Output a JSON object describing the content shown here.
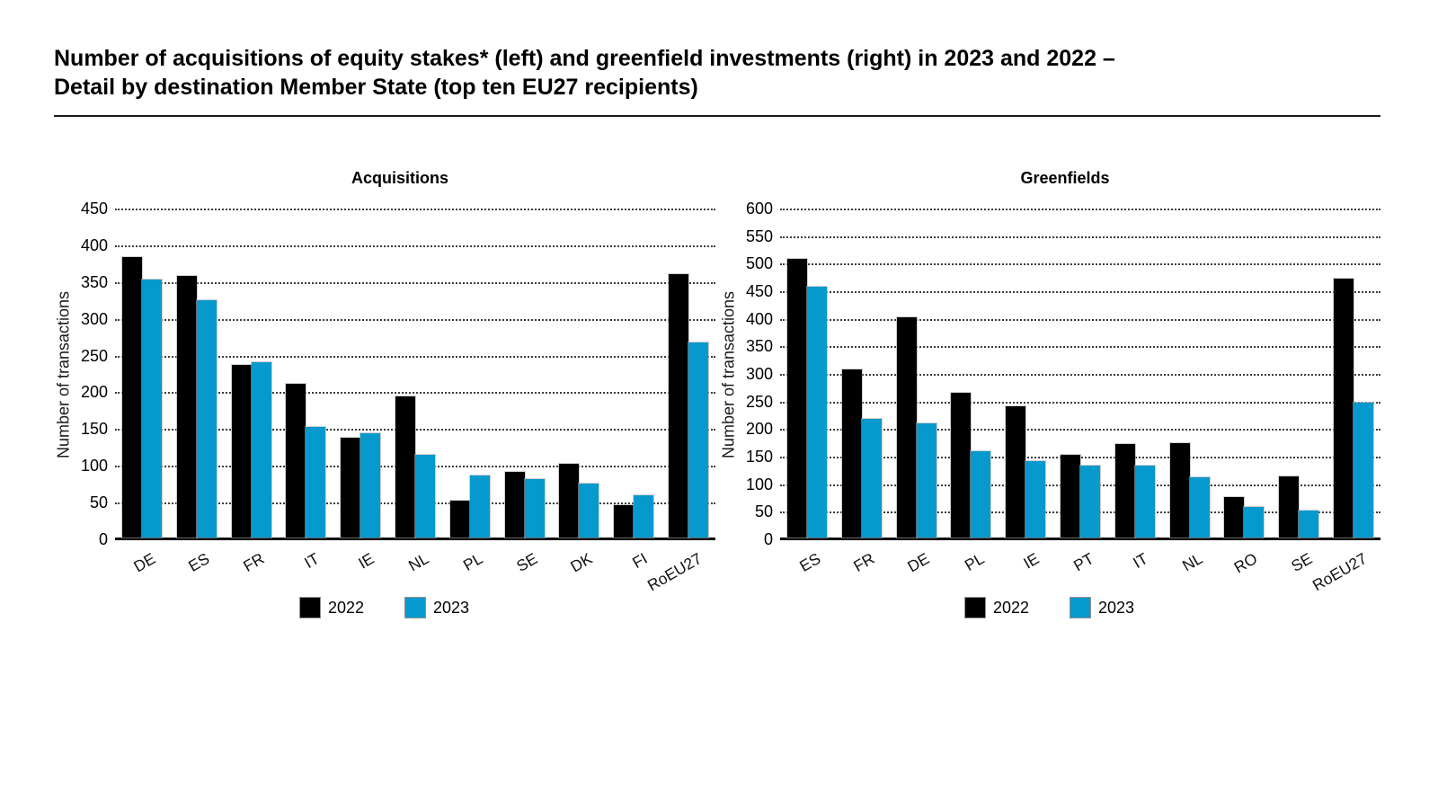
{
  "page": {
    "title_lines": [
      "Number of acquisitions of equity stakes* (left) and greenfield investments (right) in 2023 and 2022 –",
      "Detail by destination Member State (top ten EU27 recipients)"
    ]
  },
  "colors": {
    "bar_2022": "#000000",
    "bar_2023": "#0699CE",
    "gridline": "#3c3c3c"
  },
  "chart_data": [
    {
      "type": "bar",
      "title": "Acquisitions",
      "xlabel": "",
      "ylabel": "Number of transactions",
      "ylim": [
        0,
        450
      ],
      "ytick_step": 50,
      "grid": "horizontal-dotted",
      "legend_position": "bottom-center",
      "categories": [
        "DE",
        "ES",
        "FR",
        "IT",
        "IE",
        "NL",
        "PL",
        "SE",
        "DK",
        "FI",
        "RoEU27"
      ],
      "series": [
        {
          "name": "2022",
          "color": "#000000",
          "values": [
            382,
            356,
            235,
            209,
            136,
            192,
            50,
            89,
            100,
            44,
            358
          ]
        },
        {
          "name": "2023",
          "color": "#0699CE",
          "values": [
            351,
            323,
            238,
            150,
            142,
            112,
            85,
            80,
            74,
            58,
            265
          ]
        }
      ]
    },
    {
      "type": "bar",
      "title": "Greenfields",
      "xlabel": "",
      "ylabel": "Number of transactions",
      "ylim": [
        0,
        600
      ],
      "ytick_step": 50,
      "grid": "horizontal-dotted",
      "legend_position": "bottom-center",
      "categories": [
        "ES",
        "FR",
        "DE",
        "PL",
        "IE",
        "PT",
        "IT",
        "NL",
        "RO",
        "SE",
        "RoEU27"
      ],
      "series": [
        {
          "name": "2022",
          "color": "#000000",
          "values": [
            505,
            305,
            400,
            262,
            238,
            150,
            169,
            172,
            73,
            111,
            470
          ]
        },
        {
          "name": "2023",
          "color": "#0699CE",
          "values": [
            455,
            216,
            207,
            157,
            139,
            130,
            130,
            109,
            56,
            49,
            245
          ]
        }
      ]
    }
  ]
}
